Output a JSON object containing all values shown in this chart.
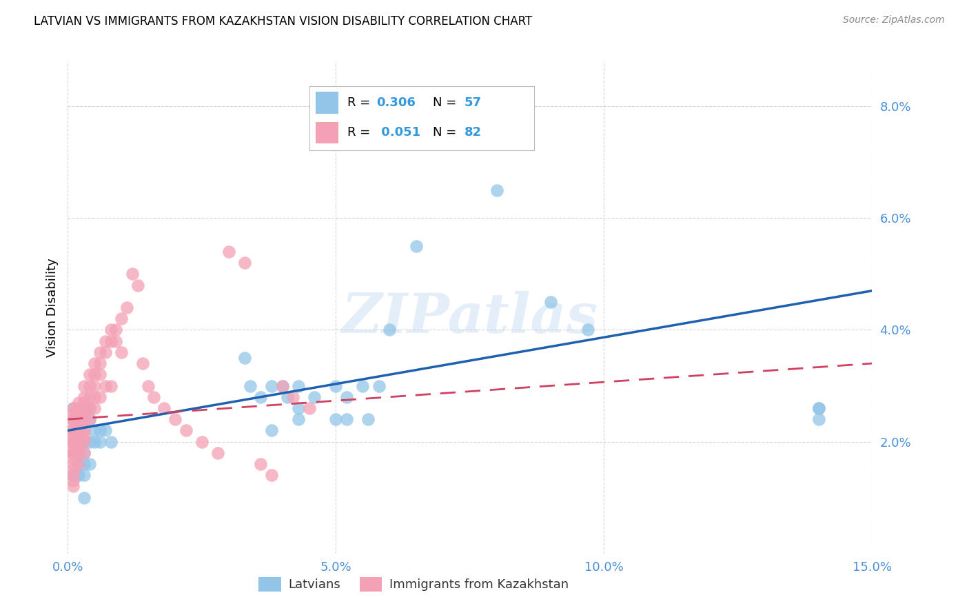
{
  "title": "LATVIAN VS IMMIGRANTS FROM KAZAKHSTAN VISION DISABILITY CORRELATION CHART",
  "source": "Source: ZipAtlas.com",
  "ylabel": "Vision Disability",
  "xlim": [
    0.0,
    0.15
  ],
  "ylim": [
    0.0,
    0.088
  ],
  "x_ticks": [
    0.0,
    0.05,
    0.1,
    0.15
  ],
  "y_ticks": [
    0.02,
    0.04,
    0.06,
    0.08
  ],
  "latvian_color": "#92C5E8",
  "kazakh_color": "#F4A0B5",
  "line_latvian_color": "#2060B0",
  "line_kazakh_color": "#D04060",
  "latvian_R": 0.306,
  "latvian_N": 57,
  "kazakh_R": 0.051,
  "kazakh_N": 82,
  "watermark": "ZIPatlas",
  "background_color": "#ffffff",
  "grid_color": "#cccccc",
  "latvian_x": [
    0.001,
    0.001,
    0.001,
    0.001,
    0.001,
    0.001,
    0.002,
    0.002,
    0.002,
    0.002,
    0.002,
    0.002,
    0.003,
    0.003,
    0.003,
    0.003,
    0.003,
    0.003,
    0.003,
    0.003,
    0.004,
    0.004,
    0.004,
    0.004,
    0.005,
    0.005,
    0.006,
    0.006,
    0.007,
    0.008,
    0.033,
    0.034,
    0.036,
    0.038,
    0.038,
    0.04,
    0.041,
    0.043,
    0.043,
    0.043,
    0.046,
    0.05,
    0.05,
    0.052,
    0.052,
    0.055,
    0.056,
    0.058,
    0.06,
    0.065,
    0.07,
    0.08,
    0.09,
    0.097,
    0.14,
    0.14,
    0.14
  ],
  "latvian_y": [
    0.026,
    0.024,
    0.022,
    0.02,
    0.018,
    0.014,
    0.025,
    0.022,
    0.02,
    0.018,
    0.016,
    0.014,
    0.026,
    0.024,
    0.022,
    0.02,
    0.018,
    0.016,
    0.014,
    0.01,
    0.026,
    0.024,
    0.02,
    0.016,
    0.022,
    0.02,
    0.022,
    0.02,
    0.022,
    0.02,
    0.035,
    0.03,
    0.028,
    0.03,
    0.022,
    0.03,
    0.028,
    0.03,
    0.026,
    0.024,
    0.028,
    0.03,
    0.024,
    0.028,
    0.024,
    0.03,
    0.024,
    0.03,
    0.04,
    0.055,
    0.075,
    0.065,
    0.045,
    0.04,
    0.026,
    0.024,
    0.026
  ],
  "kazakh_x": [
    0.001,
    0.001,
    0.001,
    0.001,
    0.001,
    0.001,
    0.001,
    0.001,
    0.001,
    0.001,
    0.001,
    0.001,
    0.001,
    0.001,
    0.001,
    0.001,
    0.001,
    0.001,
    0.001,
    0.001,
    0.002,
    0.002,
    0.002,
    0.002,
    0.002,
    0.002,
    0.002,
    0.002,
    0.002,
    0.002,
    0.003,
    0.003,
    0.003,
    0.003,
    0.003,
    0.003,
    0.003,
    0.003,
    0.003,
    0.003,
    0.004,
    0.004,
    0.004,
    0.004,
    0.004,
    0.005,
    0.005,
    0.005,
    0.005,
    0.005,
    0.006,
    0.006,
    0.006,
    0.006,
    0.007,
    0.007,
    0.007,
    0.008,
    0.008,
    0.008,
    0.009,
    0.009,
    0.01,
    0.01,
    0.011,
    0.012,
    0.013,
    0.014,
    0.015,
    0.016,
    0.018,
    0.02,
    0.022,
    0.025,
    0.028,
    0.03,
    0.033,
    0.036,
    0.038,
    0.04,
    0.042,
    0.045
  ],
  "kazakh_y": [
    0.026,
    0.025,
    0.024,
    0.024,
    0.023,
    0.022,
    0.022,
    0.021,
    0.021,
    0.02,
    0.02,
    0.019,
    0.018,
    0.018,
    0.017,
    0.016,
    0.015,
    0.014,
    0.013,
    0.012,
    0.027,
    0.026,
    0.025,
    0.024,
    0.022,
    0.021,
    0.02,
    0.019,
    0.018,
    0.016,
    0.03,
    0.028,
    0.027,
    0.026,
    0.025,
    0.024,
    0.022,
    0.021,
    0.02,
    0.018,
    0.032,
    0.03,
    0.028,
    0.026,
    0.024,
    0.034,
    0.032,
    0.03,
    0.028,
    0.026,
    0.036,
    0.034,
    0.032,
    0.028,
    0.038,
    0.036,
    0.03,
    0.04,
    0.038,
    0.03,
    0.04,
    0.038,
    0.042,
    0.036,
    0.044,
    0.05,
    0.048,
    0.034,
    0.03,
    0.028,
    0.026,
    0.024,
    0.022,
    0.02,
    0.018,
    0.054,
    0.052,
    0.016,
    0.014,
    0.03,
    0.028,
    0.026
  ],
  "lat_line_x": [
    0.0,
    0.15
  ],
  "lat_line_y": [
    0.022,
    0.047
  ],
  "kaz_line_x": [
    0.0,
    0.15
  ],
  "kaz_line_y": [
    0.024,
    0.034
  ]
}
